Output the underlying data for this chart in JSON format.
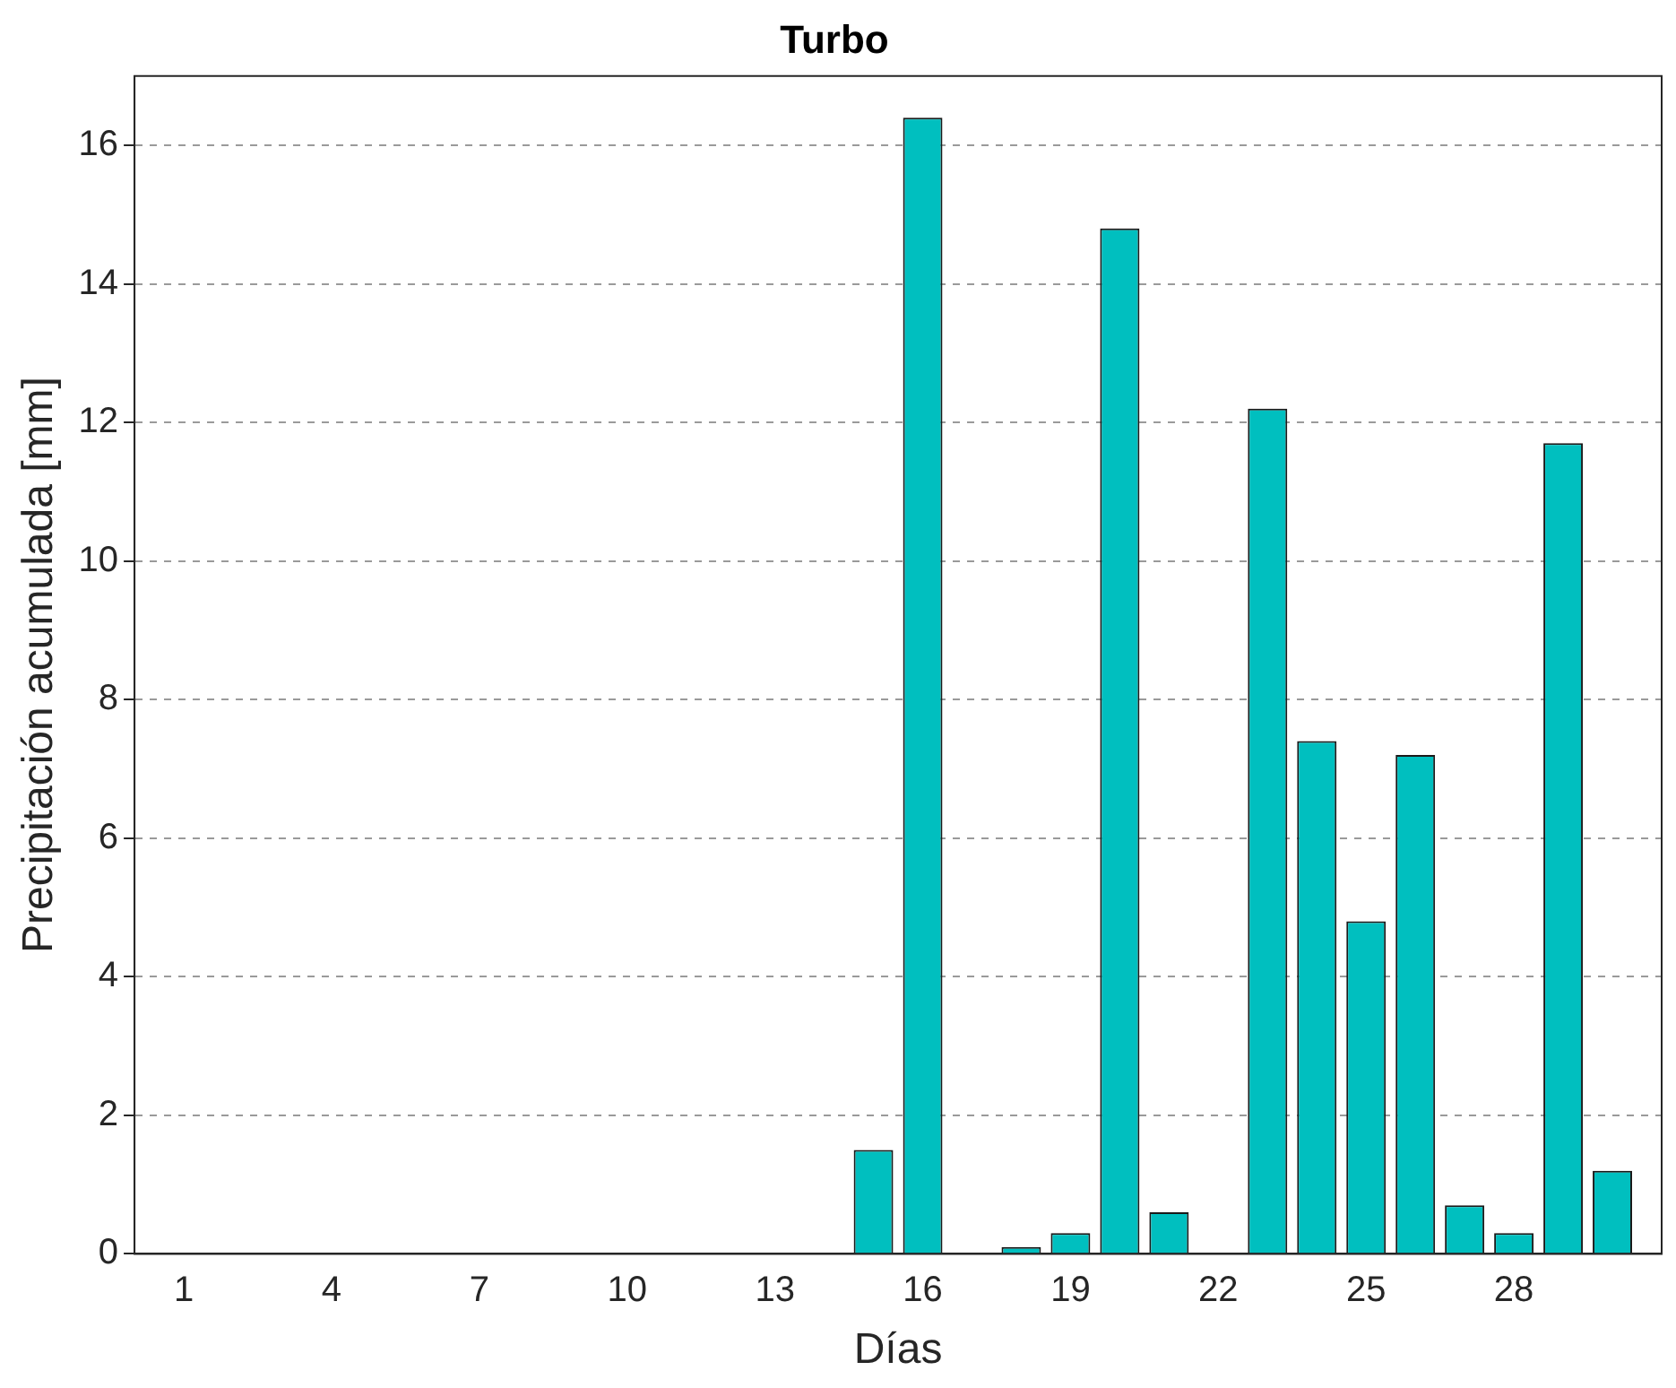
{
  "chart_data": {
    "type": "bar",
    "title": "Turbo",
    "xlabel": "Días",
    "ylabel": "Precipitación acumulada [mm]",
    "x": [
      1,
      2,
      3,
      4,
      5,
      6,
      7,
      8,
      9,
      10,
      11,
      12,
      13,
      14,
      15,
      16,
      17,
      18,
      19,
      20,
      21,
      22,
      23,
      24,
      25,
      26,
      27,
      28,
      29,
      30
    ],
    "values": [
      0,
      0,
      0,
      0,
      0,
      0,
      0,
      0,
      0,
      0,
      0,
      0,
      0,
      0,
      1.5,
      16.4,
      0,
      0.1,
      0.3,
      14.8,
      0.6,
      0,
      12.2,
      7.4,
      4.8,
      7.2,
      0.7,
      0.3,
      11.7,
      1.2
    ],
    "color": "#00bfbf",
    "xlim": [
      0,
      31
    ],
    "xticks": [
      1,
      4,
      7,
      10,
      13,
      16,
      19,
      22,
      25,
      28
    ],
    "ylim": [
      0,
      17
    ],
    "yticks": [
      0,
      2,
      4,
      6,
      8,
      10,
      12,
      14,
      16
    ],
    "grid": "y",
    "legend": false
  }
}
